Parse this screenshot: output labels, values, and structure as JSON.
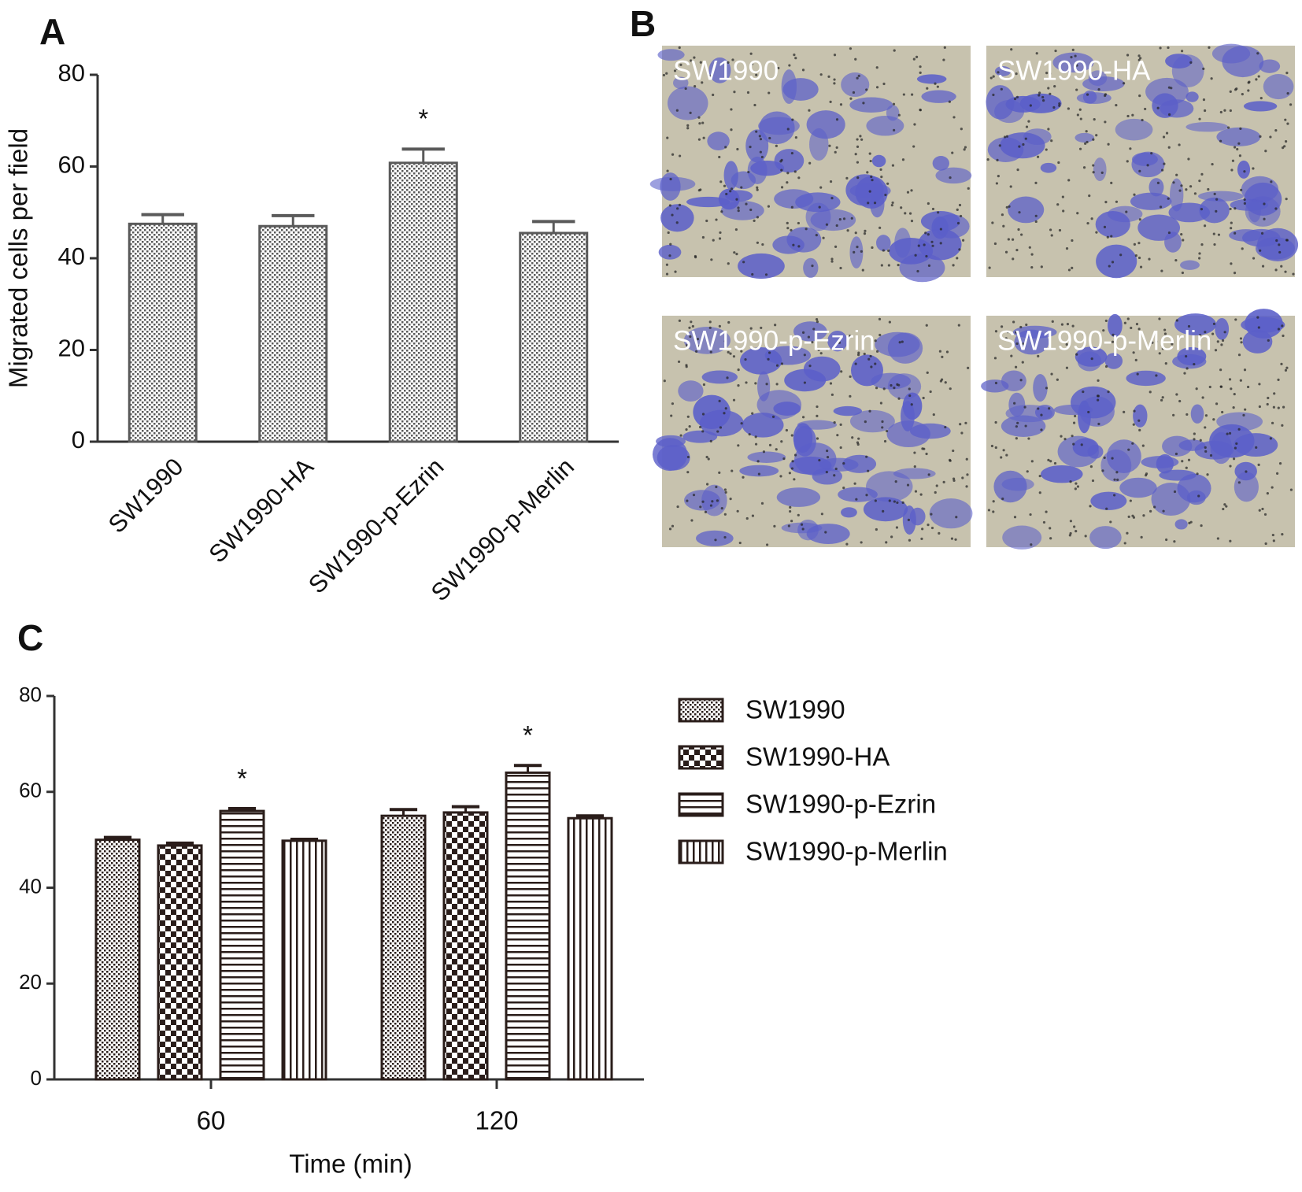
{
  "panel_labels": [
    "A",
    "B",
    "C"
  ],
  "micrographs": [
    "SW1990",
    "SW1990-HA",
    "SW1990-p-Ezrin",
    "SW1990-p-Merlin"
  ],
  "chart_data": [
    {
      "type": "bar",
      "y_label": "Migrated cells per field",
      "categories": [
        "SW1990",
        "SW1990-HA",
        "SW1990-p-Ezrin",
        "SW1990-p-Merlin"
      ],
      "values": [
        47.5,
        47,
        60.8,
        45.5
      ],
      "errors": [
        2,
        2.3,
        3,
        2.5
      ],
      "annotations": [
        null,
        null,
        "*",
        null
      ],
      "color": "#5a5a5a",
      "pattern": "dots",
      "ylim": [
        0,
        80
      ],
      "yticks": [
        0,
        20,
        40,
        60,
        80
      ]
    },
    {
      "type": "bar",
      "x_label": "Time (min)",
      "categories": [
        "60",
        "120"
      ],
      "series": [
        {
          "name": "SW1990",
          "color": "#2a1d1a",
          "pattern": "dots",
          "values": [
            50,
            55
          ],
          "errors": [
            0.5,
            1.3
          ],
          "annotations": [
            null,
            null
          ]
        },
        {
          "name": "SW1990-HA",
          "color": "#2a1d1a",
          "pattern": "checker",
          "values": [
            48.8,
            55.7
          ],
          "errors": [
            0.5,
            1.2
          ],
          "annotations": [
            null,
            null
          ]
        },
        {
          "name": "SW1990-p-Ezrin",
          "color": "#2a1d1a",
          "pattern": "hlines",
          "values": [
            56,
            64
          ],
          "errors": [
            0.5,
            1.5
          ],
          "annotations": [
            "*",
            "*"
          ]
        },
        {
          "name": "SW1990-p-Merlin",
          "color": "#2a1d1a",
          "pattern": "vlines",
          "values": [
            49.8,
            54.5
          ],
          "errors": [
            0.3,
            0.5
          ],
          "annotations": [
            null,
            null
          ]
        }
      ],
      "ylim": [
        0,
        80
      ],
      "yticks": [
        0,
        20,
        40,
        60,
        80
      ],
      "legend": "right"
    }
  ]
}
